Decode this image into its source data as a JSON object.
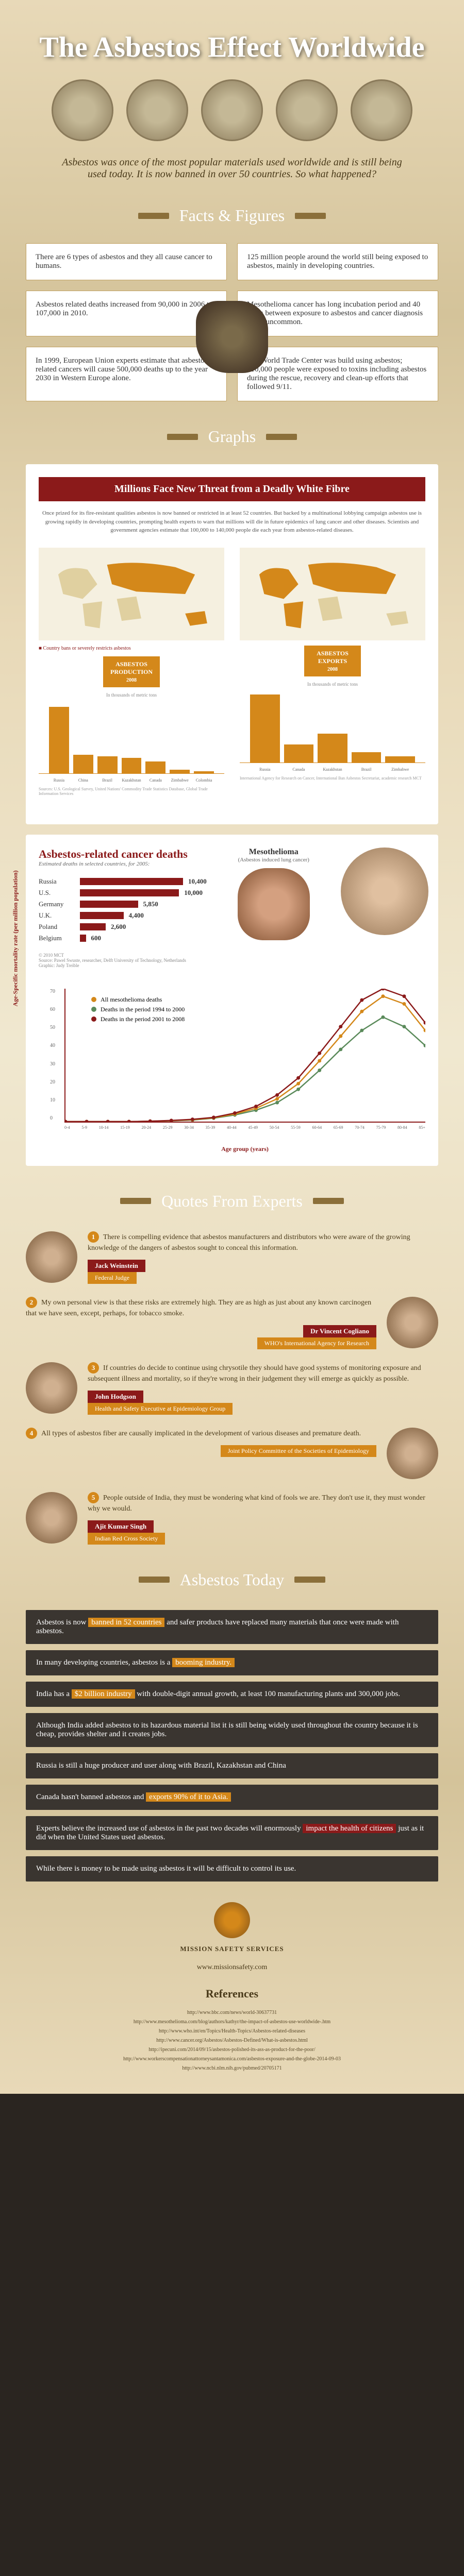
{
  "hero": {
    "title": "The Asbestos Effect Worldwide",
    "intro": "Asbestos was once of the most popular materials used worldwide and is still being used today. It is now banned in over 50 countries. So what happened?"
  },
  "sections": {
    "facts": "Facts & Figures",
    "graphs": "Graphs",
    "quotes": "Quotes From Experts",
    "today": "Asbestos Today"
  },
  "facts": [
    "There are 6 types of asbestos and they all cause cancer to humans.",
    "125 million people around the world still being exposed to asbestos, mainly in developing countries.",
    "Asbestos related deaths increased from 90,000 in 2006 to 107,000 in 2010.",
    "Mesothelioma cancer has long incubation period and 40 years between exposure to asbestos and cancer diagnosis is not uncommon.",
    "In 1999, European Union experts estimate that asbestos related cancers will cause 500,000 deaths up to the year 2030 in Western Europe alone.",
    "The World Trade Center was build using asbestos; 410,000 people were exposed to toxins including asbestos during the rescue, recovery and clean-up efforts that followed 9/11."
  ],
  "graphs": {
    "title": "Millions Face New Threat from a Deadly White Fibre",
    "subtitle": "Once prized for its fire-resistant qualities asbestos is now banned or restricted in at least 52 countries. But backed by a multinational lobbying campaign asbestos use is growing rapidly in developing countries, prompting health experts to warn that millions will die in future epidemics of lung cancer and other diseases. Scientists and government agencies estimate that 100,000 to 140,000 people die each year from asbestos-related diseases.",
    "map_legend_left": "Country bans or severely restricts asbestos",
    "production_label": "ASBESTOS PRODUCTION",
    "exports_label": "ASBESTOS EXPORTS",
    "year_label": "2008",
    "prod_unit": "In thousands of metric tons",
    "export_unit": "In thousands of metric tons",
    "production": {
      "categories": [
        "Russia",
        "China",
        "Brazil",
        "Kazakhstan",
        "Canada",
        "Zimbabwe",
        "Colombia"
      ],
      "values": [
        1020,
        280,
        255,
        230,
        175,
        50,
        30
      ],
      "color": "#d4881a",
      "ymax": 1100
    },
    "exports": {
      "categories": [
        "Russia",
        "Canada",
        "Kazakhstan",
        "Brazil",
        "Zimbabwe"
      ],
      "values": [
        660,
        175,
        280,
        100,
        60
      ],
      "color": "#d4881a",
      "ymax": 700
    },
    "source_left": "Sources: U.S. Geological Survey, United Nations' Commodity Trade Statistics Database, Global Trade Information Services",
    "source_right": "International Agency for Research on Cancer, International Ban Asbestos Secretariat, academic research  MCT"
  },
  "deaths": {
    "title": "Asbestos-related cancer deaths",
    "subtitle": "Estimated deaths in selected countries, for 2005:",
    "meso_title": "Mesothelioma",
    "meso_sub": "(Asbestos induced lung cancer)",
    "countries": [
      {
        "name": "Russia",
        "value": 10400,
        "label": "10,400"
      },
      {
        "name": "U.S.",
        "value": 10000,
        "label": "10,000"
      },
      {
        "name": "Germany",
        "value": 5850,
        "label": "5,850"
      },
      {
        "name": "U.K.",
        "value": 4400,
        "label": "4,400"
      },
      {
        "name": "Poland",
        "value": 2600,
        "label": "2,600"
      },
      {
        "name": "Belgium",
        "value": 600,
        "label": "600"
      }
    ],
    "bar_color": "#8b1a1a",
    "max_value": 10400,
    "footnote": "© 2010 MCT\nSource: Pawel Swuste, researcher, Delft University of Technology, Netherlands\nGraphic: Judy Treible",
    "mortality_chart": {
      "legend": [
        {
          "label": "All mesothelioma deaths",
          "color": "#d4881a"
        },
        {
          "label": "Deaths in the period 1994 to 2000",
          "color": "#5a8a5a"
        },
        {
          "label": "Deaths in the period 2001 to 2008",
          "color": "#8b1a1a"
        }
      ],
      "ylabel": "Age-Specific mortality rate (per million population)",
      "xlabel": "Age group (years)",
      "x_ticks": [
        "0-4",
        "5-9",
        "10-14",
        "15-19",
        "20-24",
        "25-29",
        "30-34",
        "35-39",
        "40-44",
        "45-49",
        "50-54",
        "55-59",
        "60-64",
        "65-69",
        "70-74",
        "75-79",
        "80-84",
        "85+"
      ],
      "y_ticks": [
        "0",
        "10",
        "20",
        "30",
        "40",
        "50",
        "60",
        "70"
      ],
      "ymax": 70,
      "series": {
        "all": [
          0,
          0,
          0,
          0,
          0.2,
          0.5,
          1,
          2,
          4,
          7,
          12,
          20,
          32,
          45,
          58,
          66,
          62,
          48
        ],
        "early": [
          0,
          0,
          0,
          0,
          0.2,
          0.4,
          0.8,
          1.8,
          3.5,
          6,
          10,
          17,
          27,
          38,
          48,
          55,
          50,
          40
        ],
        "late": [
          0,
          0,
          0,
          0,
          0.2,
          0.6,
          1.2,
          2.2,
          4.5,
          8,
          14,
          23,
          36,
          50,
          64,
          70,
          66,
          52
        ]
      }
    }
  },
  "quotes": [
    {
      "n": "1",
      "text": "There is compelling evidence that asbestos manufacturers and distributors who were aware of the growing knowledge of the dangers of asbestos sought to conceal this information.",
      "name": "Jack Weinstein",
      "role": "Federal Judge"
    },
    {
      "n": "2",
      "text": "My own personal view is that these risks are extremely high. They are as high as just about any known carcinogen that we have seen, except, perhaps, for tobacco smoke.",
      "name": "Dr Vincent Cogliano",
      "role": "WHO's International Agency for Research"
    },
    {
      "n": "3",
      "text": "If countries do decide to continue using chrysotile they should have good systems of monitoring exposure and subsequent illness and mortality, so if they're wrong in their judgement they will emerge as quickly as possible.",
      "name": "John Hodgson",
      "role": "Health and Safety Executive at Epidemiology Group"
    },
    {
      "n": "4",
      "text": "All types of asbestos fiber are causally implicated in the development of various diseases and premature death.",
      "name": "",
      "role": "Joint Policy Committee of the Societies of Epidemiology"
    },
    {
      "n": "5",
      "text": "People outside of India, they must be wondering what kind of fools we are. They don't use it, they must wonder why we would.",
      "name": "Ajit Kumar Singh",
      "role": "Indian Red Cross Society"
    }
  ],
  "today": [
    {
      "pre": "Asbestos is now ",
      "hl": "banned in 52 countries",
      "hlc": "orange",
      "post": " and safer products have replaced many materials that once were made with asbestos."
    },
    {
      "pre": "In many developing countries, asbestos is a ",
      "hl": "booming industry.",
      "hlc": "orange",
      "post": ""
    },
    {
      "pre": "India has a ",
      "hl": "$2 billion industry",
      "hlc": "orange",
      "post": " with double-digit annual growth, at least 100 manufacturing plants and 300,000 jobs."
    },
    {
      "pre": "Although India added asbestos to its hazardous material list it is still being widely used throughout the country because it is cheap, provides shelter and it creates jobs.",
      "hl": "",
      "hlc": "",
      "post": ""
    },
    {
      "pre": "Russia is still a huge producer and user along with Brazil, Kazakhstan and China",
      "hl": "",
      "hlc": "",
      "post": ""
    },
    {
      "pre": "Canada hasn't banned asbestos and ",
      "hl": "exports 90% of it to Asia.",
      "hlc": "orange",
      "post": ""
    },
    {
      "pre": "Experts believe the increased use of asbestos in the past two decades will enormously ",
      "hl": "impact the health of citizens",
      "hlc": "red",
      "post": " just as it did when the United States used asbestos."
    },
    {
      "pre": "While there is money to be made using asbestos it will be difficult to control its use.",
      "hl": "",
      "hlc": "",
      "post": ""
    }
  ],
  "footer": {
    "brand": "MISSION SAFETY SERVICES",
    "url": "www.missionsafety.com",
    "refs_title": "References",
    "references": [
      "http://www.bbc.com/news/world-30637731",
      "http://www.mesothelioma.com/blog/authors/kathyr/the-impact-of-asbestos-use-worldwide-.htm",
      "http://www.who.int/en/Topics/Health-Topics/Asbestos-related-diseases",
      "http://www.cancer.org/Asbestos/Asbestos-Defined/What-is-asbestos.html",
      "http://ipecuni.com/2014/09/15/asbestos-polished-its-ass-as-product-for-the-poor/",
      "http://www.workerscompensationattorneysantamonica.com/asbestos-exposure-and-the-globe-2014-09-03",
      "http://www.ncbi.nlm.nih.gov/pubmed/20705171"
    ]
  },
  "colors": {
    "red": "#8b1a1a",
    "orange": "#d4881a",
    "brown": "#4a3a1a",
    "paper": "#e8d9b8"
  }
}
